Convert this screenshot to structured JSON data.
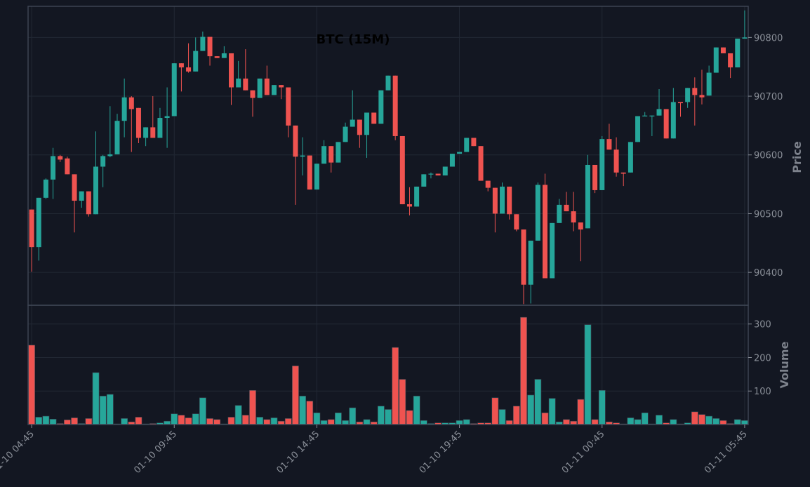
{
  "chart_data": {
    "type": "candlestick",
    "title": "BTC (15M)",
    "categories": [
      "01-10 04:45",
      null,
      null,
      null,
      null,
      null,
      null,
      null,
      null,
      null,
      null,
      null,
      null,
      null,
      null,
      null,
      null,
      null,
      null,
      null,
      "01-10 09:45",
      null,
      null,
      null,
      null,
      null,
      null,
      null,
      null,
      null,
      null,
      null,
      null,
      null,
      null,
      null,
      null,
      null,
      null,
      null,
      "01-10 14:45",
      null,
      null,
      null,
      null,
      null,
      null,
      null,
      null,
      null,
      null,
      null,
      null,
      null,
      null,
      null,
      null,
      null,
      null,
      null,
      "01-10 19:45",
      null,
      null,
      null,
      null,
      null,
      null,
      null,
      null,
      null,
      null,
      null,
      null,
      null,
      null,
      null,
      null,
      null,
      null,
      null,
      "01-11 00:45",
      null,
      null,
      null,
      null,
      null,
      null,
      null,
      null,
      null,
      null,
      null,
      null,
      null,
      null,
      null,
      null,
      null,
      null,
      null,
      "01-11 05:45"
    ],
    "open": [
      90507,
      90443,
      90527,
      90558,
      90598,
      90594,
      90567,
      90522,
      90538,
      90499,
      90580,
      90598,
      90601,
      90658,
      90698,
      90680,
      90629,
      90647,
      90629,
      90663,
      90666,
      90756,
      90749,
      90742,
      90777,
      90801,
      90768,
      90765,
      90773,
      90715,
      90730,
      90710,
      90697,
      90730,
      90702,
      90719,
      90715,
      90650,
      90597,
      90599,
      90541,
      90585,
      90615,
      90587,
      90622,
      90648,
      90660,
      90634,
      90672,
      90653,
      90710,
      90735,
      90632,
      90516,
      90512,
      90546,
      90567,
      90568,
      90565,
      90580,
      90602,
      90605,
      90629,
      90615,
      90556,
      90544,
      90500,
      90546,
      90499,
      90473,
      90379,
      90454,
      90549,
      90390,
      90484,
      90515,
      90504,
      90485,
      90475,
      90583,
      90540,
      90627,
      90609,
      90570,
      90570,
      90622,
      90666,
      90666,
      90667,
      90678,
      90628,
      90690,
      90690,
      90714,
      90702,
      90701,
      90740,
      90783,
      90773,
      90749,
      90798
    ],
    "high": [
      90507,
      90527,
      90560,
      90612,
      90600,
      90597,
      90567,
      90538,
      90538,
      90640,
      90600,
      90683,
      90670,
      90730,
      90700,
      90680,
      90647,
      90700,
      90680,
      90715,
      90756,
      90756,
      90790,
      90800,
      90810,
      90801,
      90768,
      90785,
      90773,
      90760,
      90780,
      90710,
      90730,
      90752,
      90719,
      90719,
      90715,
      90650,
      90630,
      90599,
      90585,
      90625,
      90615,
      90622,
      90655,
      90710,
      90660,
      90672,
      90672,
      90710,
      90735,
      90735,
      90632,
      90545,
      90546,
      90567,
      90570,
      90568,
      90580,
      90602,
      90605,
      90629,
      90629,
      90615,
      90556,
      90544,
      90553,
      90546,
      90499,
      90473,
      90454,
      90553,
      90568,
      90484,
      90525,
      90537,
      90537,
      90485,
      90600,
      90583,
      90632,
      90653,
      90630,
      90570,
      90622,
      90666,
      90673,
      90667,
      90712,
      90678,
      90714,
      90690,
      90714,
      90732,
      90745,
      90752,
      90783,
      90783,
      90773,
      90798,
      90846
    ],
    "low": [
      90401,
      90420,
      90525,
      90525,
      90588,
      90567,
      90468,
      90510,
      90495,
      90499,
      90545,
      90596,
      90601,
      90630,
      90605,
      90620,
      90615,
      90629,
      90629,
      90612,
      90666,
      90708,
      90740,
      90742,
      90777,
      90752,
      90765,
      90765,
      90685,
      90715,
      90710,
      90665,
      90697,
      90702,
      90702,
      90695,
      90630,
      90515,
      90565,
      90541,
      90541,
      90585,
      90570,
      90587,
      90622,
      90648,
      90612,
      90595,
      90653,
      90653,
      90710,
      90625,
      90516,
      90497,
      90512,
      90546,
      90560,
      90565,
      90565,
      90580,
      90602,
      90605,
      90615,
      90556,
      90538,
      90468,
      90500,
      90490,
      90470,
      90346,
      90347,
      90454,
      90390,
      90390,
      90484,
      90504,
      90470,
      90419,
      90475,
      90535,
      90540,
      90609,
      90563,
      90547,
      90570,
      90622,
      90666,
      90632,
      90667,
      90628,
      90628,
      90665,
      90680,
      90650,
      90686,
      90701,
      90740,
      90773,
      90731,
      90749,
      90798
    ],
    "close": [
      90443,
      90527,
      90558,
      90598,
      90592,
      90567,
      90522,
      90538,
      90499,
      90580,
      90598,
      90601,
      90658,
      90698,
      90678,
      90629,
      90647,
      90629,
      90663,
      90666,
      90756,
      90749,
      90742,
      90777,
      90801,
      90768,
      90765,
      90773,
      90715,
      90730,
      90710,
      90697,
      90730,
      90702,
      90719,
      90715,
      90650,
      90597,
      90599,
      90541,
      90585,
      90615,
      90587,
      90622,
      90648,
      90660,
      90634,
      90672,
      90653,
      90710,
      90735,
      90632,
      90516,
      90512,
      90546,
      90567,
      90568,
      90565,
      90580,
      90602,
      90605,
      90629,
      90615,
      90556,
      90544,
      90500,
      90546,
      90499,
      90473,
      90379,
      90454,
      90549,
      90390,
      90484,
      90515,
      90504,
      90485,
      90473,
      90583,
      90540,
      90627,
      90609,
      90570,
      90568,
      90622,
      90666,
      90667,
      90667,
      90678,
      90628,
      90690,
      90688,
      90714,
      90702,
      90698,
      90740,
      90783,
      90773,
      90749,
      90798,
      90800
    ],
    "volume": [
      237,
      22,
      25,
      16,
      3,
      14,
      20,
      3,
      18,
      155,
      85,
      90,
      2,
      18,
      8,
      22,
      2,
      3,
      5,
      10,
      32,
      28,
      20,
      32,
      80,
      18,
      15,
      2,
      22,
      57,
      28,
      102,
      22,
      15,
      20,
      10,
      18,
      175,
      85,
      70,
      35,
      12,
      15,
      35,
      12,
      50,
      8,
      15,
      8,
      55,
      45,
      230,
      135,
      42,
      85,
      12,
      3,
      5,
      5,
      5,
      12,
      15,
      3,
      5,
      5,
      80,
      45,
      12,
      55,
      320,
      88,
      135,
      35,
      78,
      8,
      15,
      10,
      75,
      298,
      15,
      102,
      8,
      5,
      2,
      20,
      15,
      35,
      2,
      28,
      5,
      15,
      2,
      5,
      38,
      30,
      25,
      18,
      12,
      3,
      15,
      12
    ],
    "ylabel": "Price",
    "ylim": [
      90344,
      90853
    ],
    "yticks": [
      90400,
      90500,
      90600,
      90700,
      90800
    ],
    "volume_ylabel": "Volume",
    "volume_ylim": [
      0,
      356
    ],
    "volume_yticks": [
      100,
      200,
      300
    ],
    "up_color": "#26a69a",
    "down_color": "#ef5350",
    "grid": true
  }
}
